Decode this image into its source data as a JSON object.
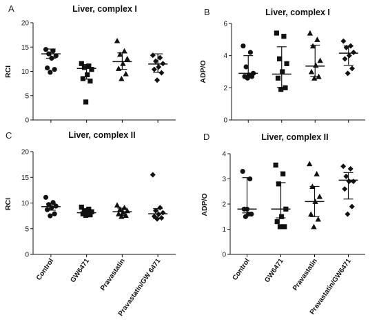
{
  "chart_data": [
    {
      "panel": "A",
      "type": "scatter",
      "title": "Liver, complex I",
      "ylabel": "RCI",
      "ylim": [
        0,
        20
      ],
      "yticks": [
        0,
        5,
        10,
        15,
        20
      ],
      "categories": [
        "Control",
        "GW6471",
        "Pravastatin",
        "Pravastatin/GW 6471"
      ],
      "markers": [
        "circle",
        "square",
        "triangle",
        "diamond"
      ],
      "points": [
        [
          14.5,
          14.2,
          13.6,
          13.2,
          12.7,
          10.7,
          10.4,
          9.8
        ],
        [
          11.6,
          11.1,
          10.8,
          10.4,
          9.3,
          8.5,
          8.0,
          3.7
        ],
        [
          16.3,
          14.2,
          13.5,
          12.6,
          11.6,
          10.6,
          9.5,
          8.5
        ],
        [
          13.3,
          12.8,
          12.1,
          11.6,
          10.9,
          10.4,
          9.7,
          8.2
        ]
      ],
      "median": [
        13.6,
        10.6,
        12.0,
        11.5
      ],
      "whisker_low": [
        12.7,
        8.4,
        10.4,
        9.8
      ],
      "whisker_high": [
        14.6,
        11.4,
        13.8,
        13.6
      ]
    },
    {
      "panel": "B",
      "type": "scatter",
      "title": "Liver, complex I",
      "ylabel": "ADP/O",
      "ylim": [
        0,
        6
      ],
      "yticks": [
        0,
        2,
        4,
        6
      ],
      "categories": [
        "Control",
        "GW6471",
        "Pravastatin",
        "Pravastatin/GW 6471"
      ],
      "markers": [
        "circle",
        "square",
        "triangle",
        "diamond"
      ],
      "points": [
        [
          4.6,
          4.2,
          3.3,
          2.9,
          2.8,
          2.7,
          2.7,
          2.6
        ],
        [
          5.4,
          5.2,
          3.8,
          3.5,
          3.0,
          2.6,
          2.0,
          1.9
        ],
        [
          5.4,
          5.0,
          4.6,
          3.7,
          3.4,
          3.0,
          2.7,
          2.6
        ],
        [
          4.9,
          4.6,
          4.5,
          4.2,
          4.0,
          3.8,
          3.2,
          2.9
        ]
      ],
      "median": [
        2.9,
        2.85,
        3.35,
        4.15
      ],
      "whisker_low": [
        2.7,
        2.0,
        2.7,
        3.4
      ],
      "whisker_high": [
        4.0,
        4.55,
        4.65,
        4.6
      ]
    },
    {
      "panel": "C",
      "type": "scatter",
      "title": "Liver, complex II",
      "ylabel": "RCI",
      "ylim": [
        0,
        20
      ],
      "yticks": [
        0,
        5,
        10,
        15,
        20
      ],
      "categories": [
        "Control",
        "GW6471",
        "Pravastatin",
        "Pravastatin/GW 6471"
      ],
      "markers": [
        "circle",
        "square",
        "triangle",
        "diamond"
      ],
      "points": [
        [
          11.1,
          10.1,
          9.7,
          9.4,
          9.1,
          8.7,
          7.9,
          7.5
        ],
        [
          9.2,
          8.8,
          8.5,
          8.3,
          8.1,
          7.9,
          7.7,
          7.6
        ],
        [
          9.6,
          9.1,
          8.8,
          8.5,
          8.2,
          7.9,
          7.6,
          7.4
        ],
        [
          15.5,
          9.1,
          8.5,
          8.1,
          7.8,
          7.4,
          7.1,
          6.9
        ]
      ],
      "median": [
        9.3,
        8.1,
        8.3,
        7.9
      ],
      "whisker_low": [
        8.6,
        7.7,
        7.6,
        7.0
      ],
      "whisker_high": [
        9.9,
        8.7,
        9.0,
        8.9
      ]
    },
    {
      "panel": "D",
      "type": "scatter",
      "title": "Liver, complex II",
      "ylabel": "ADP/O",
      "ylim": [
        0,
        4
      ],
      "yticks": [
        0,
        1,
        2,
        3,
        4
      ],
      "categories": [
        "Control",
        "GW6471",
        "Pravastatin",
        "Pravastatin/GW6471"
      ],
      "markers": [
        "circle",
        "square",
        "triangle",
        "diamond"
      ],
      "points": [
        [
          3.3,
          3.0,
          1.8,
          1.8,
          1.6,
          1.6,
          1.5
        ],
        [
          3.55,
          3.2,
          2.8,
          1.8,
          1.5,
          1.3,
          1.1,
          1.1
        ],
        [
          3.6,
          3.2,
          2.7,
          2.3,
          2.1,
          1.6,
          1.4,
          1.1
        ],
        [
          3.5,
          3.4,
          3.1,
          2.9,
          2.9,
          2.6,
          1.9,
          1.6
        ]
      ],
      "median": [
        1.8,
        1.8,
        2.1,
        2.95
      ],
      "whisker_low": [
        1.65,
        1.45,
        1.5,
        2.2
      ],
      "whisker_high": [
        3.05,
        2.85,
        2.7,
        3.25
      ]
    }
  ]
}
